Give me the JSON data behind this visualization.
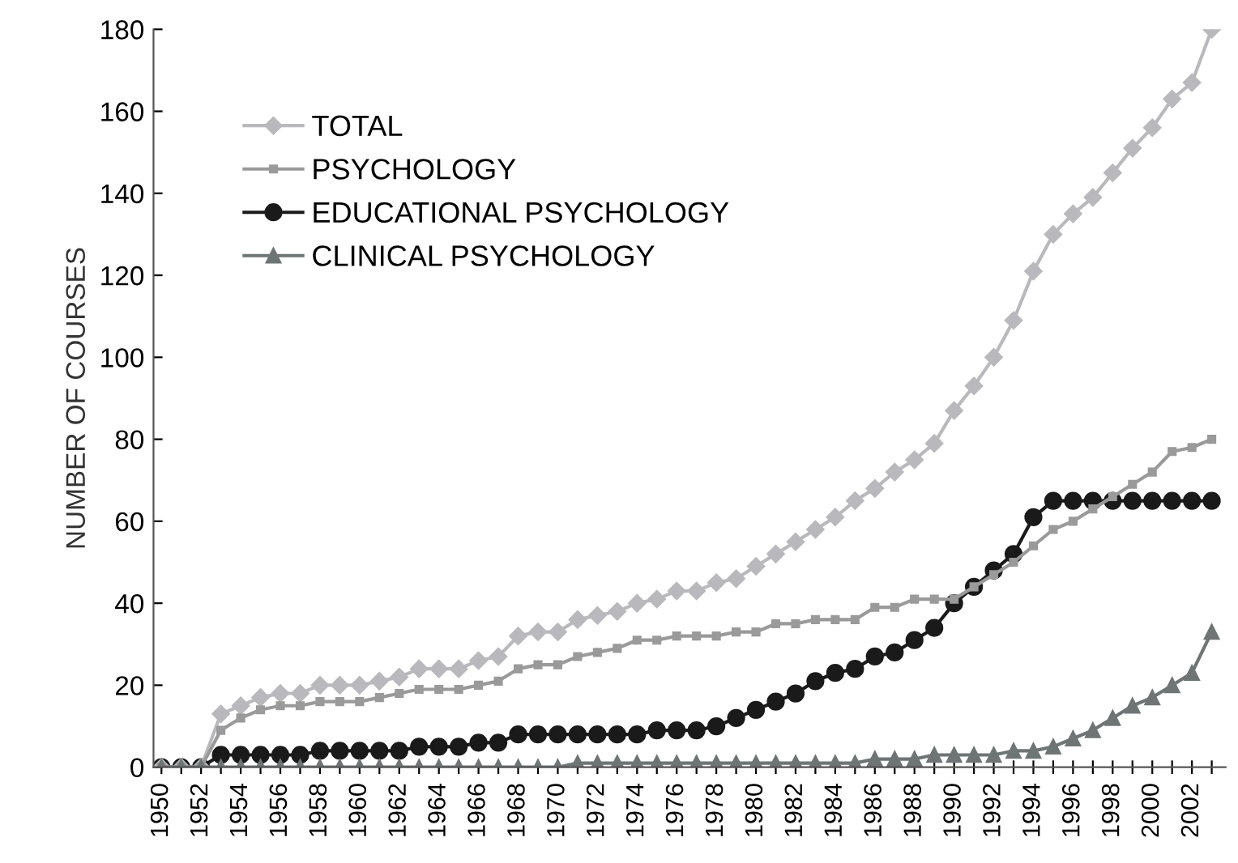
{
  "chart_data": {
    "type": "line",
    "ylabel": "NUMBER OF COURSES",
    "x": [
      1950,
      1951,
      1952,
      1953,
      1954,
      1955,
      1956,
      1957,
      1958,
      1959,
      1960,
      1961,
      1962,
      1963,
      1964,
      1965,
      1966,
      1967,
      1968,
      1969,
      1970,
      1971,
      1972,
      1973,
      1974,
      1975,
      1976,
      1977,
      1978,
      1979,
      1980,
      1981,
      1982,
      1983,
      1984,
      1985,
      1986,
      1987,
      1988,
      1989,
      1990,
      1991,
      1992,
      1993,
      1994,
      1995,
      1996,
      1997,
      1998,
      1999,
      2000,
      2001,
      2002,
      2003
    ],
    "xlim": [
      1949.6,
      2003.7
    ],
    "xticks": [
      1950,
      {
        "value": 1951,
        "label": null
      },
      1952,
      {
        "value": 1953,
        "label": null
      },
      1954,
      {
        "value": 1955,
        "label": null
      },
      1956,
      {
        "value": 1957,
        "label": null
      },
      1958,
      {
        "value": 1959,
        "label": null
      },
      1960,
      {
        "value": 1961,
        "label": null
      },
      1962,
      {
        "value": 1963,
        "label": null
      },
      1964,
      {
        "value": 1965,
        "label": null
      },
      1966,
      {
        "value": 1967,
        "label": null
      },
      1968,
      {
        "value": 1969,
        "label": null
      },
      1970,
      {
        "value": 1971,
        "label": null
      },
      1972,
      {
        "value": 1973,
        "label": null
      },
      1974,
      {
        "value": 1975,
        "label": null
      },
      1976,
      {
        "value": 1977,
        "label": null
      },
      1978,
      {
        "value": 1979,
        "label": null
      },
      1980,
      {
        "value": 1981,
        "label": null
      },
      1982,
      {
        "value": 1983,
        "label": null
      },
      1984,
      {
        "value": 1985,
        "label": null
      },
      1986,
      {
        "value": 1987,
        "label": null
      },
      1988,
      {
        "value": 1989,
        "label": null
      },
      1990,
      {
        "value": 1991,
        "label": null
      },
      1992,
      {
        "value": 1993,
        "label": null
      },
      1994,
      {
        "value": 1995,
        "label": null
      },
      1996,
      {
        "value": 1997,
        "label": null
      },
      1998,
      {
        "value": 1999,
        "label": null
      },
      2000,
      {
        "value": 2001,
        "label": null
      },
      2002,
      {
        "value": 2003,
        "label": null
      }
    ],
    "ylim": [
      0,
      180
    ],
    "yticks": [
      0,
      20,
      40,
      60,
      80,
      100,
      120,
      140,
      160,
      180
    ],
    "grid": false,
    "legend": "top left",
    "line_style": "solid",
    "series": [
      {
        "name": "TOTAL",
        "color": "#b9b9bd",
        "marker": "diamond",
        "values": [
          0,
          0,
          0,
          13,
          15,
          17,
          18,
          18,
          20,
          20,
          20,
          21,
          22,
          24,
          24,
          24,
          26,
          27,
          32,
          33,
          33,
          36,
          37,
          38,
          40,
          41,
          43,
          43,
          45,
          46,
          49,
          52,
          55,
          58,
          61,
          65,
          68,
          72,
          75,
          79,
          87,
          93,
          100,
          109,
          121,
          130,
          135,
          139,
          145,
          151,
          156,
          163,
          167,
          180
        ]
      },
      {
        "name": "PSYCHOLOGY",
        "color": "#9a9a9a",
        "marker": "square",
        "values": [
          0,
          0,
          0,
          9,
          12,
          14,
          15,
          15,
          16,
          16,
          16,
          17,
          18,
          19,
          19,
          19,
          20,
          21,
          24,
          25,
          25,
          27,
          28,
          29,
          31,
          31,
          32,
          32,
          32,
          33,
          33,
          35,
          35,
          36,
          36,
          36,
          39,
          39,
          41,
          41,
          41,
          44,
          47,
          50,
          54,
          58,
          60,
          63,
          66,
          69,
          72,
          77,
          78,
          80
        ]
      },
      {
        "name": "EDUCATIONAL PSYCHOLOGY",
        "color": "#1a1a1a",
        "marker": "circle",
        "values": [
          0,
          0,
          0,
          3,
          3,
          3,
          3,
          3,
          4,
          4,
          4,
          4,
          4,
          5,
          5,
          5,
          6,
          6,
          8,
          8,
          8,
          8,
          8,
          8,
          8,
          9,
          9,
          9,
          10,
          12,
          14,
          16,
          18,
          21,
          23,
          24,
          27,
          28,
          31,
          34,
          40,
          44,
          48,
          52,
          61,
          65,
          65,
          65,
          65,
          65,
          65,
          65,
          65,
          65
        ]
      },
      {
        "name": "CLINICAL PSYCHOLOGY",
        "color": "#6e7574",
        "marker": "triangle",
        "values": [
          0,
          0,
          0,
          0,
          0,
          0,
          0,
          0,
          0,
          0,
          0,
          0,
          0,
          0,
          0,
          0,
          0,
          0,
          0,
          0,
          0,
          1,
          1,
          1,
          1,
          1,
          1,
          1,
          1,
          1,
          1,
          1,
          1,
          1,
          1,
          1,
          2,
          2,
          2,
          3,
          3,
          3,
          3,
          4,
          4,
          5,
          7,
          9,
          12,
          15,
          17,
          20,
          23,
          33
        ]
      }
    ]
  }
}
